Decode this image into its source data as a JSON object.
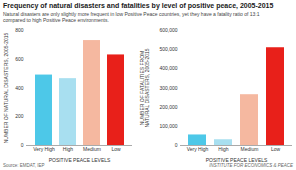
{
  "title": "Frequency of natural disasters and fatalities by level of positive peace, 2005-2015",
  "subtitle": "Natural disasters are only slightly more frequent in low Positive Peace countries, yet they have a fatality ratio of 13:1\ncompared to high Positive Peace environments.",
  "annotations": [
    "Source: EMDAT, IEP",
    "INSTITUTE FOR ECONOMICS & PEACE"
  ],
  "chart_data": [
    {
      "type": "bar",
      "categories": [
        "Very High",
        "High",
        "Medium",
        "Low"
      ],
      "values": [
        490,
        465,
        730,
        630
      ],
      "colors": [
        "#4dc8e8",
        "#a8dff0",
        "#f5b8a0",
        "#e8201a"
      ],
      "ylabel": "NUMBER OF NATURAL DISASTERS, 2005-2015",
      "xlabel": "POSITIVE PEACE LEVELS",
      "ylim": [
        0,
        800
      ],
      "yticks": [
        0,
        200,
        400,
        600,
        800
      ]
    },
    {
      "type": "bar",
      "categories": [
        "Very High",
        "High",
        "Medium",
        "Low"
      ],
      "values": [
        55000,
        30000,
        265000,
        510000
      ],
      "colors": [
        "#4dc8e8",
        "#a8dff0",
        "#f5b8a0",
        "#e8201a"
      ],
      "ylabel": "NUMBER OF FATALITIES FROM\nNATURAL DISASTERS, 2005-2015",
      "xlabel": "POSITIVE PEACE LEVELS",
      "ylim": [
        0,
        600000
      ],
      "yticks": [
        0,
        {
          "value": 100000,
          "label": "100,000"
        },
        {
          "value": 200000,
          "label": "200,000"
        },
        {
          "value": 300000,
          "label": "300,000"
        },
        {
          "value": 400000,
          "label": "400,000"
        },
        {
          "value": 500000,
          "label": "500,000"
        },
        {
          "value": 600000,
          "label": "600,000"
        }
      ]
    }
  ]
}
